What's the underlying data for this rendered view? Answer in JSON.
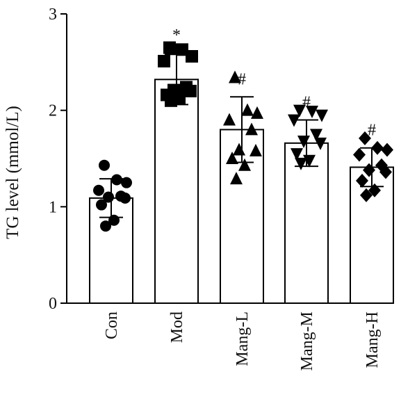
{
  "chart_data": {
    "type": "bar",
    "title": "",
    "xlabel": "",
    "ylabel": "TG level (mmol/L)",
    "ylim": [
      0,
      3
    ],
    "yticks": [
      0,
      1,
      2,
      3
    ],
    "grid": false,
    "categories": [
      "Con",
      "Mod",
      "Mang-L",
      "Mang-M",
      "Mang-H"
    ],
    "values": [
      1.09,
      2.32,
      1.8,
      1.66,
      1.41
    ],
    "error": [
      0.2,
      0.26,
      0.34,
      0.24,
      0.2
    ],
    "annotations": [
      "",
      "*",
      "#",
      "#",
      "#"
    ],
    "marker_shapes": [
      "circle",
      "square",
      "triangle-up",
      "triangle-down",
      "diamond"
    ],
    "points": [
      [
        1.43,
        1.28,
        1.25,
        1.17,
        1.11,
        1.1,
        1.09,
        1.02,
        0.86,
        0.8
      ],
      [
        2.65,
        2.63,
        2.56,
        2.51,
        2.24,
        2.21,
        2.2,
        2.16,
        2.12,
        2.1
      ],
      [
        2.34,
        2.0,
        1.97,
        1.9,
        1.8,
        1.59,
        1.58,
        1.5,
        1.43,
        1.29
      ],
      [
        2.0,
        1.99,
        1.95,
        1.9,
        1.75,
        1.68,
        1.66,
        1.55,
        1.48,
        1.45
      ],
      [
        1.71,
        1.61,
        1.59,
        1.54,
        1.43,
        1.38,
        1.36,
        1.27,
        1.17,
        1.12
      ]
    ],
    "colors": {
      "bar_fill": "#ffffff",
      "bar_stroke": "#000000",
      "marker": "#000000"
    }
  }
}
